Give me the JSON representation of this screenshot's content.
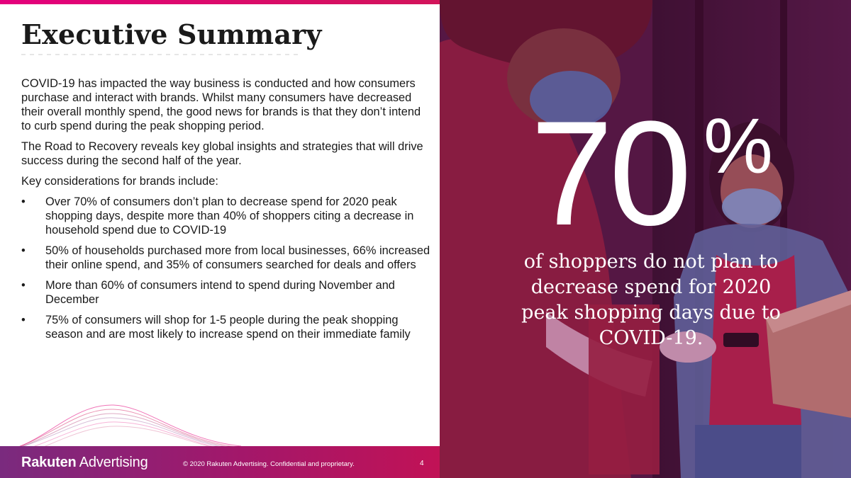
{
  "slide": {
    "title": "Executive Summary",
    "paragraphs": [
      "COVID-19 has impacted the way business is conducted and how consumers purchase and interact with brands. Whilst many consumers have decreased their overall monthly spend, the good news for brands is that they don’t intend to curb spend during the peak shopping period.",
      "The Road to Recovery reveals key global insights and strategies that will drive success during the second half of the year.",
      "Key considerations for brands include:"
    ],
    "bullet_symbol": "•",
    "bullets": [
      "Over 70% of consumers don’t plan to decrease spend for 2020 peak shopping days, despite more than 40% of shoppers citing a decrease in household spend due to COVID-19",
      "50% of households purchased more from local businesses, 66% increased their online spend, and 35% of consumers searched for deals and offers",
      "More than 60% of consumers intend to spend during November and December",
      "75% of consumers will shop for 1-5 people during the peak shopping season and are most likely to increase spend on their immediate family"
    ]
  },
  "stat": {
    "number": "70",
    "percent_sign": "%",
    "caption": "of shoppers do not plan to decrease spend for 2020 peak shopping days due to COVID-19."
  },
  "footer": {
    "logo_brand": "Rakuten",
    "logo_product": "Advertising",
    "copyright": "© 2020 Rakuten Advertising. Confidential and proprietary.",
    "page_number": "4"
  },
  "colors": {
    "accent_magenta": "#e4007c",
    "footer_purple": "#7a2a7e",
    "footer_red": "#c11256",
    "text_dark": "#1a1a1a"
  },
  "icons": {
    "photo": "delivery-photo-person-with-mask"
  }
}
